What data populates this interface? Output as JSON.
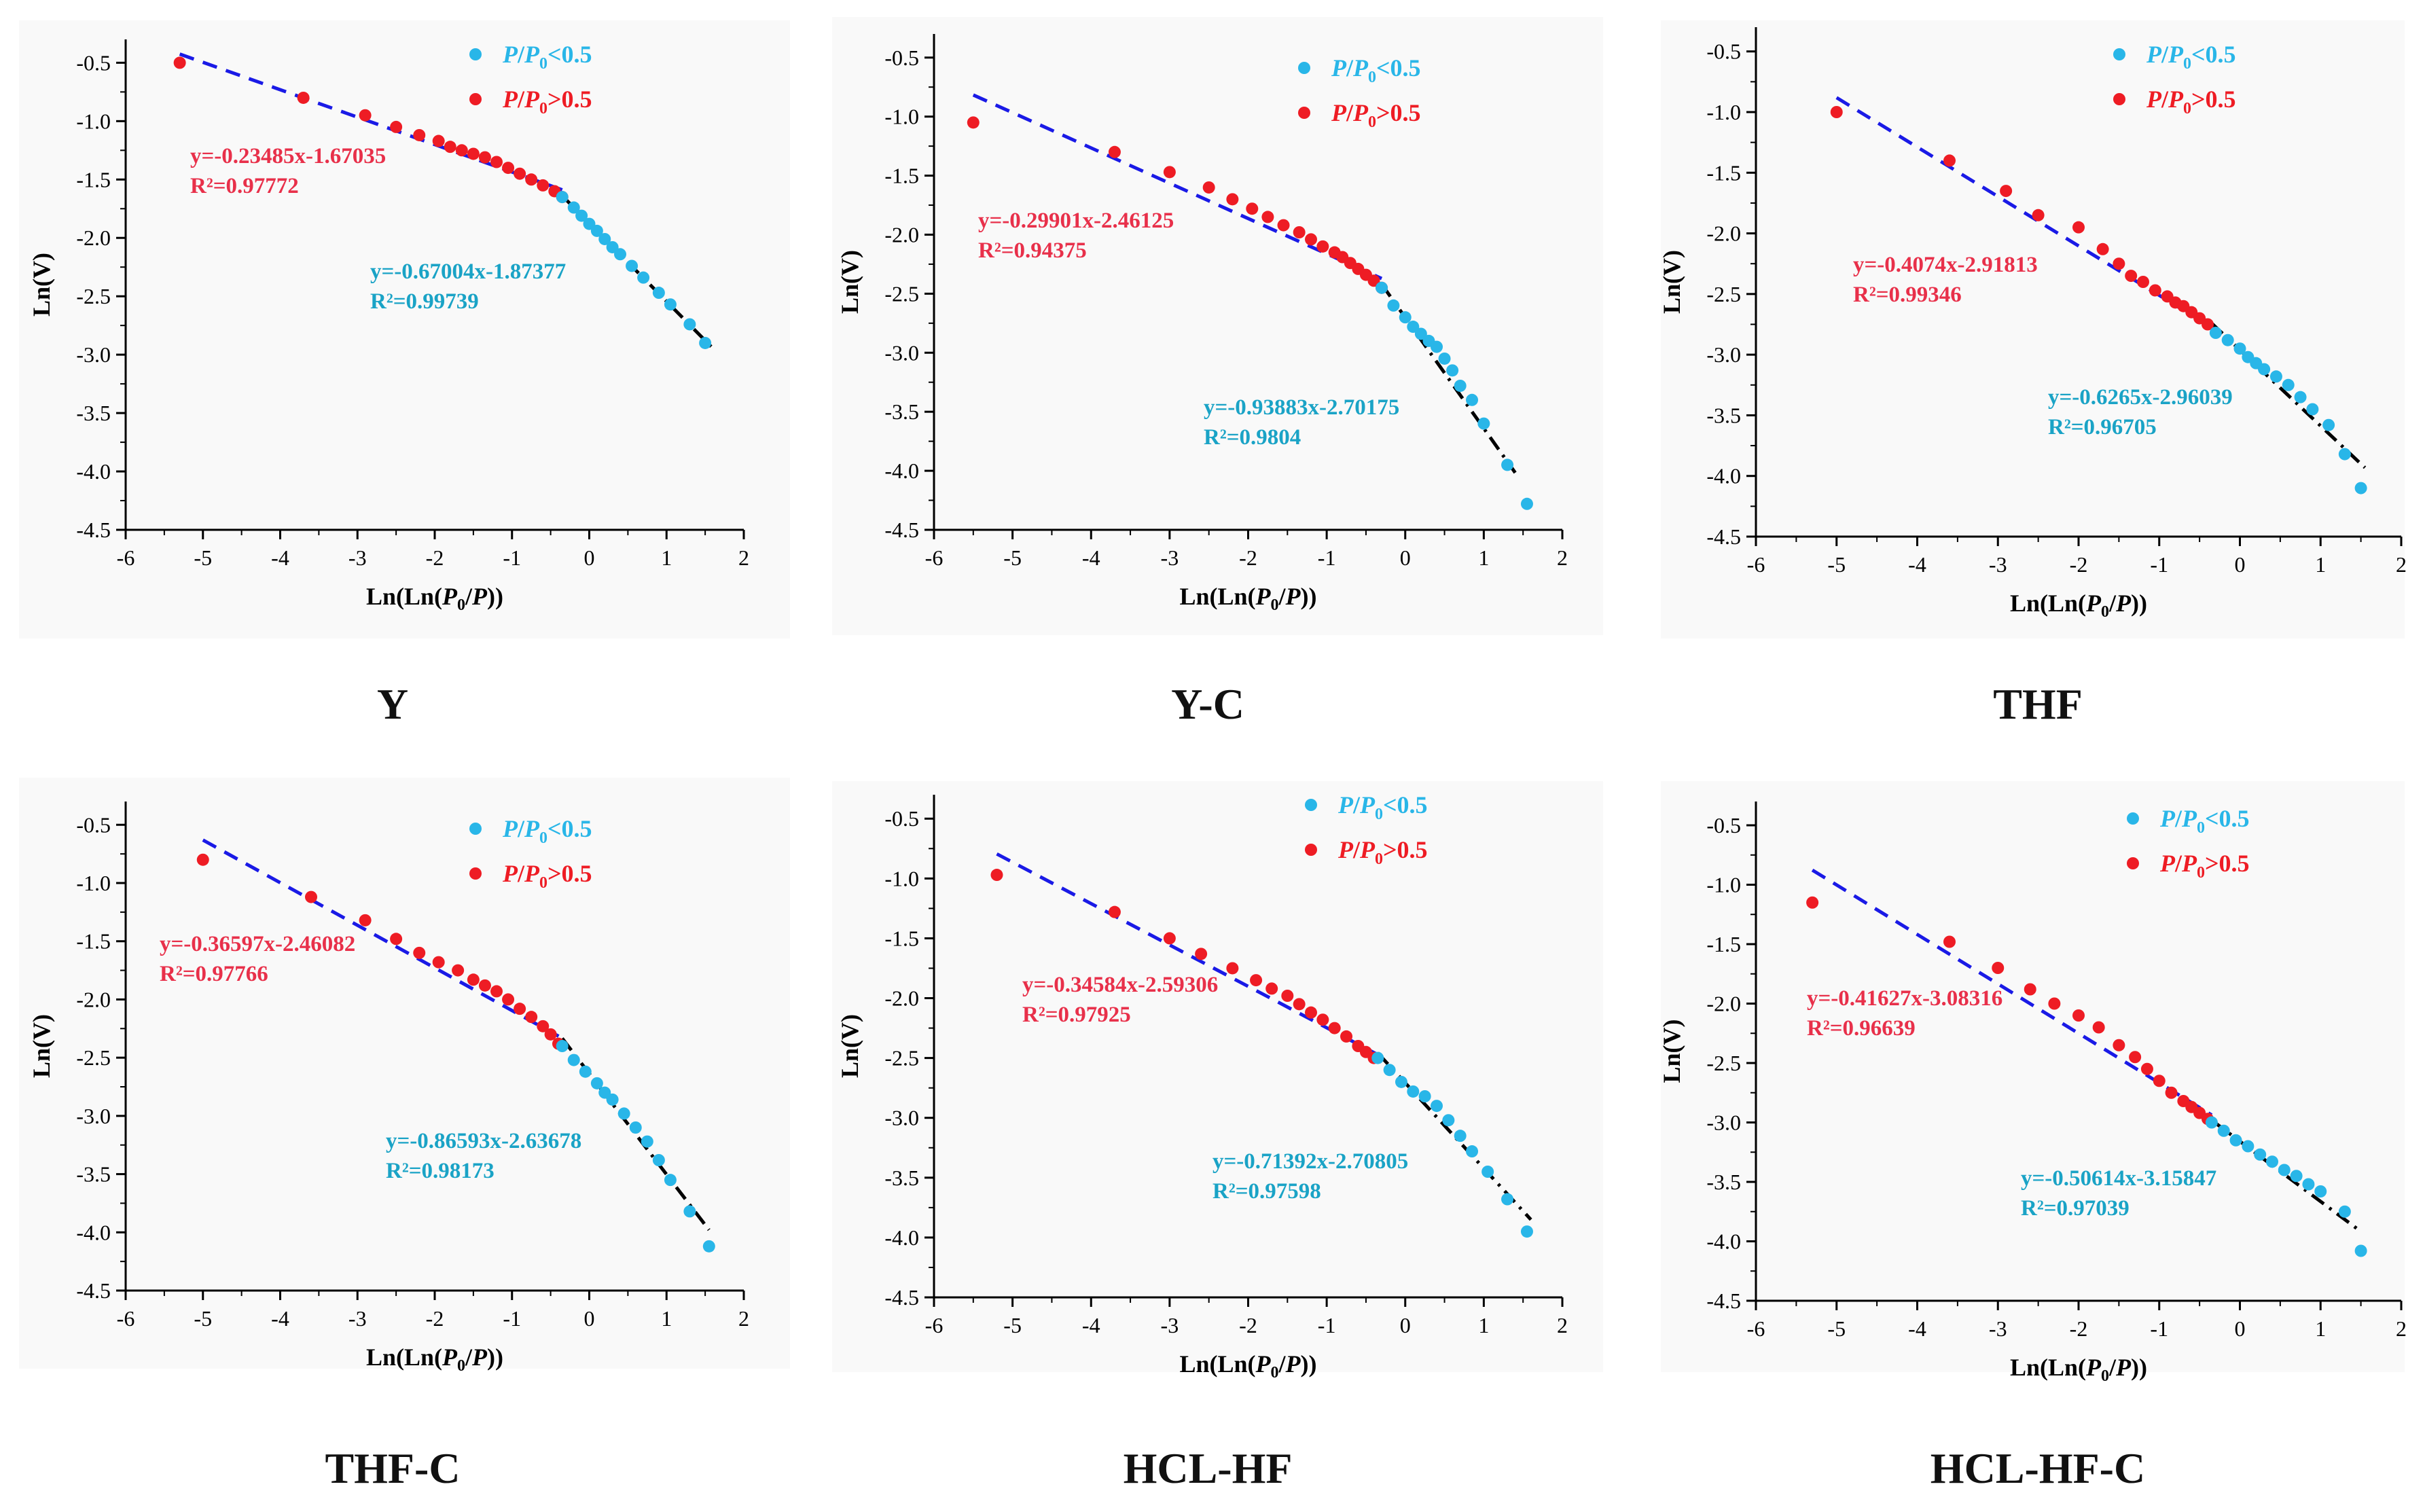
{
  "colors": {
    "low_pressure": "#29B6E8",
    "high_pressure": "#EE1C24",
    "high_fit_line": "#1A1AE6",
    "low_fit_line": "#000000",
    "low_equation": "#1AA3C6",
    "high_equation": "#E8304A",
    "axis": "#000000",
    "background": "#F9F9F9"
  },
  "legend": {
    "low": "P/P0<0.5",
    "high": "P/P0>0.5"
  },
  "chart_data": [
    {
      "type": "scatter",
      "panel": "Y",
      "xlabel": "Ln(Ln(P0/P))",
      "ylabel": "Ln(V)",
      "xlim": [
        -6,
        2
      ],
      "ylim": [
        -4.5,
        -0.3
      ],
      "xticks": [
        "-6",
        "-5",
        "-4",
        "-3",
        "-2",
        "-1",
        "0",
        "1",
        "2"
      ],
      "yticks": [
        "-0.5",
        "-1.0",
        "-1.5",
        "-2.0",
        "-2.5",
        "-3.0",
        "-3.5",
        "-4.0",
        "-4.5"
      ],
      "high_fit": {
        "label": "y=-0.23485x-1.67035",
        "r2": "R²=0.97772",
        "slope": -0.23485,
        "intercept": -1.67035,
        "x_range": [
          -5.3,
          -0.35
        ]
      },
      "low_fit": {
        "label": "y=-0.67004x-1.87377",
        "r2": "R²=0.99739",
        "slope": -0.67004,
        "intercept": -1.87377,
        "x_range": [
          -0.35,
          1.6
        ]
      },
      "series": [
        {
          "name": "P/P0<0.5",
          "x": [
            -0.35,
            -0.2,
            -0.1,
            0.0,
            0.1,
            0.2,
            0.3,
            0.4,
            0.55,
            0.7,
            0.9,
            1.05,
            1.3,
            1.5
          ],
          "y": [
            -1.65,
            -1.74,
            -1.81,
            -1.88,
            -1.94,
            -2.01,
            -2.08,
            -2.14,
            -2.24,
            -2.34,
            -2.47,
            -2.57,
            -2.74,
            -2.9
          ]
        },
        {
          "name": "P/P0>0.5",
          "x": [
            -5.3,
            -3.7,
            -2.9,
            -2.5,
            -2.2,
            -1.95,
            -1.8,
            -1.65,
            -1.5,
            -1.35,
            -1.2,
            -1.05,
            -0.9,
            -0.75,
            -0.6,
            -0.45,
            -0.35
          ],
          "y": [
            -0.5,
            -0.8,
            -0.95,
            -1.05,
            -1.12,
            -1.17,
            -1.22,
            -1.25,
            -1.28,
            -1.31,
            -1.35,
            -1.4,
            -1.45,
            -1.5,
            -1.55,
            -1.6,
            -1.65
          ]
        }
      ]
    },
    {
      "type": "scatter",
      "panel": "Y-C",
      "xlabel": "Ln(Ln(P0/P))",
      "ylabel": "Ln(V)",
      "xlim": [
        -6,
        2
      ],
      "ylim": [
        -4.5,
        -0.3
      ],
      "xticks": [
        "-6",
        "-5",
        "-4",
        "-3",
        "-2",
        "-1",
        "0",
        "1",
        "2"
      ],
      "yticks": [
        "-0.5",
        "-1.0",
        "-1.5",
        "-2.0",
        "-2.5",
        "-3.0",
        "-3.5",
        "-4.0",
        "-4.5"
      ],
      "high_fit": {
        "label": "y=-0.29901x-2.46125",
        "r2": "R²=0.94375",
        "slope": -0.29901,
        "intercept": -2.46125,
        "x_range": [
          -5.5,
          -0.3
        ]
      },
      "low_fit": {
        "label": "y=-0.93883x-2.70175",
        "r2": "R²=0.9804",
        "slope": -0.93883,
        "intercept": -2.70175,
        "x_range": [
          -0.3,
          1.4
        ]
      },
      "series": [
        {
          "name": "P/P0<0.5",
          "x": [
            -0.3,
            -0.15,
            0.0,
            0.1,
            0.2,
            0.3,
            0.4,
            0.5,
            0.6,
            0.7,
            0.85,
            1.0,
            1.3,
            1.55
          ],
          "y": [
            -2.45,
            -2.6,
            -2.7,
            -2.78,
            -2.84,
            -2.9,
            -2.95,
            -3.05,
            -3.15,
            -3.28,
            -3.4,
            -3.6,
            -3.95,
            -4.28
          ]
        },
        {
          "name": "P/P0>0.5",
          "x": [
            -5.5,
            -3.7,
            -3.0,
            -2.5,
            -2.2,
            -1.95,
            -1.75,
            -1.55,
            -1.35,
            -1.2,
            -1.05,
            -0.9,
            -0.8,
            -0.7,
            -0.6,
            -0.5,
            -0.4,
            -0.3
          ],
          "y": [
            -1.05,
            -1.3,
            -1.47,
            -1.6,
            -1.7,
            -1.78,
            -1.85,
            -1.92,
            -1.98,
            -2.04,
            -2.1,
            -2.15,
            -2.19,
            -2.24,
            -2.29,
            -2.34,
            -2.39,
            -2.45
          ]
        }
      ]
    },
    {
      "type": "scatter",
      "panel": "THF",
      "xlabel": "Ln(Ln(P0/P))",
      "ylabel": "Ln(V)",
      "xlim": [
        -6,
        2
      ],
      "ylim": [
        -4.5,
        -0.3
      ],
      "xticks": [
        "-6",
        "-5",
        "-4",
        "-3",
        "-2",
        "-1",
        "0",
        "1",
        "2"
      ],
      "yticks": [
        "-0.5",
        "-1.0",
        "-1.5",
        "-2.0",
        "-2.5",
        "-3.0",
        "-3.5",
        "-4.0",
        "-4.5"
      ],
      "high_fit": {
        "label": "y=-0.4074x-2.91813",
        "r2": "R²=0.99346",
        "slope": -0.4074,
        "intercept": -2.91813,
        "x_range": [
          -5.0,
          -0.35
        ]
      },
      "low_fit": {
        "label": "y=-0.6265x-2.96039",
        "r2": "R²=0.96705",
        "slope": -0.6265,
        "intercept": -2.96039,
        "x_range": [
          -0.35,
          1.55
        ]
      },
      "series": [
        {
          "name": "P/P0<0.5",
          "x": [
            -0.3,
            -0.15,
            0.0,
            0.1,
            0.2,
            0.3,
            0.45,
            0.6,
            0.75,
            0.9,
            1.1,
            1.3,
            1.5
          ],
          "y": [
            -2.82,
            -2.88,
            -2.95,
            -3.02,
            -3.07,
            -3.12,
            -3.18,
            -3.25,
            -3.35,
            -3.45,
            -3.58,
            -3.82,
            -4.1
          ]
        },
        {
          "name": "P/P0>0.5",
          "x": [
            -5.0,
            -3.6,
            -2.9,
            -2.5,
            -2.0,
            -1.7,
            -1.5,
            -1.35,
            -1.2,
            -1.05,
            -0.9,
            -0.8,
            -0.7,
            -0.6,
            -0.5,
            -0.4
          ],
          "y": [
            -1.0,
            -1.4,
            -1.65,
            -1.85,
            -1.95,
            -2.13,
            -2.25,
            -2.35,
            -2.4,
            -2.47,
            -2.52,
            -2.57,
            -2.6,
            -2.65,
            -2.7,
            -2.75
          ]
        }
      ]
    },
    {
      "type": "scatter",
      "panel": "THF-C",
      "xlabel": "Ln(Ln(P0/P))",
      "ylabel": "Ln(V)",
      "xlim": [
        -6,
        2
      ],
      "ylim": [
        -4.5,
        -0.3
      ],
      "xticks": [
        "-6",
        "-5",
        "-4",
        "-3",
        "-2",
        "-1",
        "0",
        "1",
        "2"
      ],
      "yticks": [
        "-0.5",
        "-1.0",
        "-1.5",
        "-2.0",
        "-2.5",
        "-3.0",
        "-3.5",
        "-4.0",
        "-4.5"
      ],
      "high_fit": {
        "label": "y=-0.36597x-2.46082",
        "r2": "R²=0.97766",
        "slope": -0.36597,
        "intercept": -2.46082,
        "x_range": [
          -5.0,
          -0.35
        ]
      },
      "low_fit": {
        "label": "y=-0.86593x-2.63678",
        "r2": "R²=0.98173",
        "slope": -0.86593,
        "intercept": -2.63678,
        "x_range": [
          -0.35,
          1.55
        ]
      },
      "series": [
        {
          "name": "P/P0<0.5",
          "x": [
            -0.35,
            -0.2,
            -0.05,
            0.1,
            0.2,
            0.3,
            0.45,
            0.6,
            0.75,
            0.9,
            1.05,
            1.3,
            1.55
          ],
          "y": [
            -2.4,
            -2.52,
            -2.62,
            -2.72,
            -2.8,
            -2.86,
            -2.98,
            -3.1,
            -3.22,
            -3.38,
            -3.55,
            -3.82,
            -4.12
          ]
        },
        {
          "name": "P/P0>0.5",
          "x": [
            -5.0,
            -3.6,
            -2.9,
            -2.5,
            -2.2,
            -1.95,
            -1.7,
            -1.5,
            -1.35,
            -1.2,
            -1.05,
            -0.9,
            -0.75,
            -0.6,
            -0.5,
            -0.4
          ],
          "y": [
            -0.8,
            -1.12,
            -1.32,
            -1.48,
            -1.6,
            -1.68,
            -1.75,
            -1.83,
            -1.88,
            -1.93,
            -2.0,
            -2.08,
            -2.15,
            -2.23,
            -2.3,
            -2.38
          ]
        }
      ]
    },
    {
      "type": "scatter",
      "panel": "HCL-HF",
      "xlabel": "Ln(Ln(P0/P))",
      "ylabel": "Ln(V)",
      "xlim": [
        -6,
        2
      ],
      "ylim": [
        -4.5,
        -0.3
      ],
      "xticks": [
        "-6",
        "-5",
        "-4",
        "-3",
        "-2",
        "-1",
        "0",
        "1",
        "2"
      ],
      "yticks": [
        "-0.5",
        "-1.0",
        "-1.5",
        "-2.0",
        "-2.5",
        "-3.0",
        "-3.5",
        "-4.0",
        "-4.5"
      ],
      "high_fit": {
        "label": "y=-0.34584x-2.59306",
        "r2": "R²=0.97925",
        "slope": -0.34584,
        "intercept": -2.59306,
        "x_range": [
          -5.2,
          -0.35
        ]
      },
      "low_fit": {
        "label": "y=-0.71392x-2.70805",
        "r2": "R²=0.97598",
        "slope": -0.71392,
        "intercept": -2.70805,
        "x_range": [
          -0.35,
          1.6
        ]
      },
      "series": [
        {
          "name": "P/P0<0.5",
          "x": [
            -0.35,
            -0.2,
            -0.05,
            0.1,
            0.25,
            0.4,
            0.55,
            0.7,
            0.85,
            1.05,
            1.3,
            1.55
          ],
          "y": [
            -2.5,
            -2.6,
            -2.7,
            -2.78,
            -2.82,
            -2.9,
            -3.02,
            -3.15,
            -3.28,
            -3.45,
            -3.68,
            -3.95
          ]
        },
        {
          "name": "P/P0>0.5",
          "x": [
            -5.2,
            -3.7,
            -3.0,
            -2.6,
            -2.2,
            -1.9,
            -1.7,
            -1.5,
            -1.35,
            -1.2,
            -1.05,
            -0.9,
            -0.75,
            -0.6,
            -0.5,
            -0.4
          ],
          "y": [
            -0.97,
            -1.28,
            -1.5,
            -1.63,
            -1.75,
            -1.85,
            -1.92,
            -1.98,
            -2.05,
            -2.12,
            -2.18,
            -2.25,
            -2.32,
            -2.4,
            -2.45,
            -2.5
          ]
        }
      ]
    },
    {
      "type": "scatter",
      "panel": "HCL-HF-C",
      "xlabel": "Ln(Ln(P0/P))",
      "ylabel": "Ln(V)",
      "xlim": [
        -6,
        2
      ],
      "ylim": [
        -4.5,
        -0.3
      ],
      "xticks": [
        "-6",
        "-5",
        "-4",
        "-3",
        "-2",
        "-1",
        "0",
        "1",
        "2"
      ],
      "yticks": [
        "-0.5",
        "-1.0",
        "-1.5",
        "-2.0",
        "-2.5",
        "-3.0",
        "-3.5",
        "-4.0",
        "-4.5"
      ],
      "high_fit": {
        "label": "y=-0.41627x-3.08316",
        "r2": "R²=0.96639",
        "slope": -0.41627,
        "intercept": -3.08316,
        "x_range": [
          -5.3,
          -0.35
        ]
      },
      "low_fit": {
        "label": "y=-0.50614x-3.15847",
        "r2": "R²=0.97039",
        "slope": -0.50614,
        "intercept": -3.15847,
        "x_range": [
          -0.35,
          1.5
        ]
      },
      "series": [
        {
          "name": "P/P0<0.5",
          "x": [
            -0.35,
            -0.2,
            -0.05,
            0.1,
            0.25,
            0.4,
            0.55,
            0.7,
            0.85,
            1.0,
            1.3,
            1.5
          ],
          "y": [
            -3.0,
            -3.07,
            -3.15,
            -3.2,
            -3.27,
            -3.33,
            -3.4,
            -3.45,
            -3.52,
            -3.58,
            -3.75,
            -4.08
          ]
        },
        {
          "name": "P/P0>0.5",
          "x": [
            -5.3,
            -3.6,
            -3.0,
            -2.6,
            -2.3,
            -2.0,
            -1.75,
            -1.5,
            -1.3,
            -1.15,
            -1.0,
            -0.85,
            -0.7,
            -0.6,
            -0.5,
            -0.4
          ],
          "y": [
            -1.15,
            -1.48,
            -1.7,
            -1.88,
            -2.0,
            -2.1,
            -2.2,
            -2.35,
            -2.45,
            -2.55,
            -2.65,
            -2.75,
            -2.82,
            -2.87,
            -2.92,
            -2.97
          ]
        }
      ]
    }
  ]
}
